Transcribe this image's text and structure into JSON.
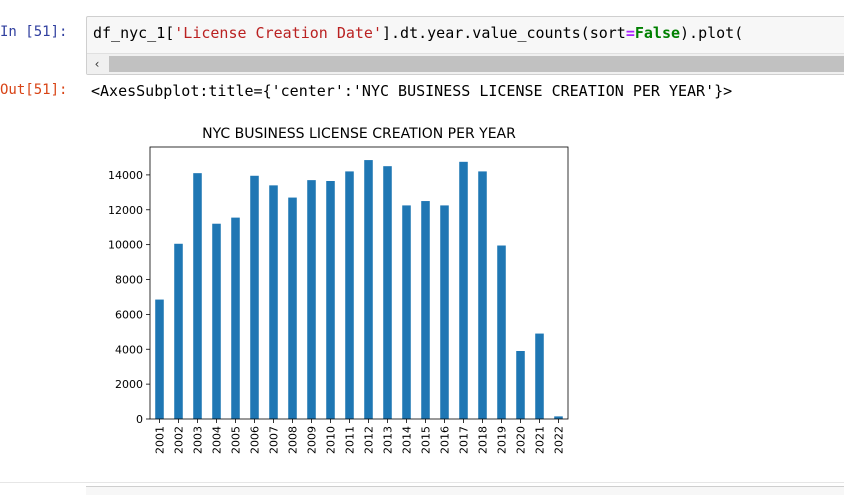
{
  "input_cell": {
    "prompt": "In [51]:",
    "code_part1": "df_nyc_1[",
    "code_string": "'License Creation Date'",
    "code_part2": "].dt.year.value_counts(sort",
    "code_eq": "=",
    "code_kw": "False",
    "code_part3": ").plot(",
    "scroll_left_icon": "‹"
  },
  "output_cell": {
    "prompt": "Out[51]:",
    "text": "<AxesSubplot:title={'center':'NYC BUSINESS LICENSE CREATION PER YEAR'}>"
  },
  "chart_data": {
    "type": "bar",
    "title": "NYC BUSINESS LICENSE CREATION PER YEAR",
    "categories": [
      "2001",
      "2002",
      "2003",
      "2004",
      "2005",
      "2006",
      "2007",
      "2008",
      "2009",
      "2010",
      "2011",
      "2012",
      "2013",
      "2014",
      "2015",
      "2016",
      "2017",
      "2018",
      "2019",
      "2020",
      "2021",
      "2022"
    ],
    "values": [
      6850,
      10050,
      14100,
      11200,
      11550,
      13950,
      13400,
      12700,
      13700,
      13650,
      14200,
      14850,
      14500,
      12250,
      12500,
      12250,
      14750,
      14200,
      9950,
      3900,
      4900,
      150
    ],
    "ylim": [
      0,
      15600
    ],
    "yticks": [
      0,
      2000,
      4000,
      6000,
      8000,
      10000,
      12000,
      14000
    ],
    "bar_color": "#1f77b4",
    "grid": false
  }
}
